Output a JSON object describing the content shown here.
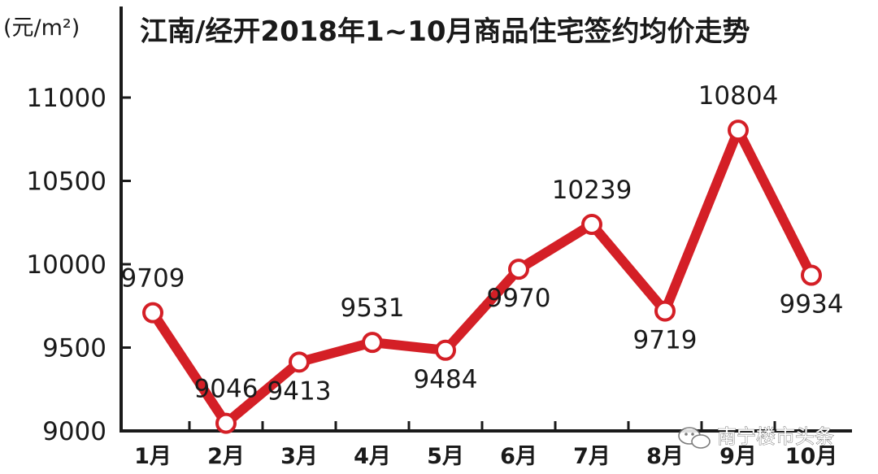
{
  "chart_data": {
    "type": "line",
    "title": "江南/经开2018年1~10月商品住宅签约均价走势",
    "ylabel": "(元/m²)",
    "xlabel": "",
    "categories": [
      "1月",
      "2月",
      "3月",
      "4月",
      "5月",
      "6月",
      "7月",
      "8月",
      "9月",
      "10月"
    ],
    "series": [
      {
        "values": [
          9709,
          9046,
          9413,
          9531,
          9484,
          9970,
          10239,
          9719,
          10804,
          9934
        ]
      }
    ],
    "data_labels": [
      "9709",
      "9046",
      "9413",
      "9531",
      "9484",
      "9970",
      "10239",
      "9719",
      "10804",
      "9934"
    ],
    "yticks": [
      9000,
      9500,
      10000,
      10500,
      11000
    ],
    "ylim": [
      9000,
      11200
    ],
    "grid": false,
    "legend": "none",
    "colors": {
      "line": "#d41f26",
      "marker_fill": "#ffffff",
      "axis": "#1a1a1a",
      "text": "#1a1a1a"
    }
  },
  "watermark": {
    "text": "南宁楼市头条",
    "icon": "wechat-icon"
  }
}
